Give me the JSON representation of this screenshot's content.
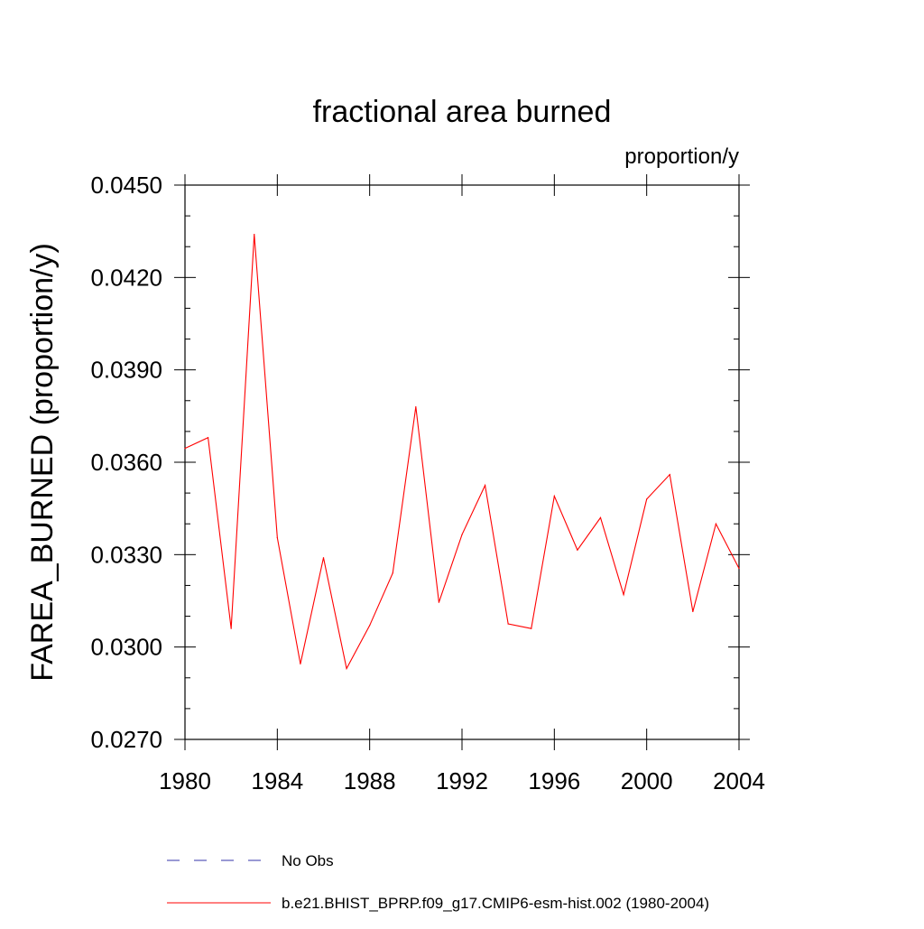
{
  "chart_data": {
    "type": "line",
    "title": "fractional area burned",
    "units_label": "proportion/y",
    "ylabel": "FAREA_BURNED  (proportion/y)",
    "xlabel": "",
    "xlim": [
      1980,
      2004
    ],
    "ylim": [
      0.027,
      0.045
    ],
    "xticks": [
      1980,
      1984,
      1988,
      1992,
      1996,
      2000,
      2004
    ],
    "yticks": [
      "0.0270",
      "0.0300",
      "0.0330",
      "0.0360",
      "0.0390",
      "0.0420",
      "0.0450"
    ],
    "grid": false,
    "series": [
      {
        "name": "b.e21.BHIST_BPRP.f09_g17.CMIP6-esm-hist.002 (1980-2004)",
        "color": "#ff0000",
        "style": "solid",
        "x": [
          1980,
          1981,
          1982,
          1983,
          1984,
          1985,
          1986,
          1987,
          1988,
          1989,
          1990,
          1991,
          1992,
          1993,
          1994,
          1995,
          1996,
          1997,
          1998,
          1999,
          2000,
          2001,
          2002,
          2003,
          2004
        ],
        "values": [
          0.03645,
          0.0368,
          0.0306,
          0.0434,
          0.03355,
          0.02945,
          0.0329,
          0.0293,
          0.0307,
          0.0324,
          0.0378,
          0.03145,
          0.03365,
          0.03525,
          0.03075,
          0.0306,
          0.0349,
          0.03315,
          0.0342,
          0.0317,
          0.0348,
          0.0356,
          0.03115,
          0.034,
          0.03255
        ]
      }
    ],
    "legend": [
      {
        "label": "No Obs",
        "color": "#3333aa",
        "style": "dashed"
      },
      {
        "label": "b.e21.BHIST_BPRP.f09_g17.CMIP6-esm-hist.002 (1980-2004)",
        "color": "#ff0000",
        "style": "solid"
      }
    ]
  }
}
